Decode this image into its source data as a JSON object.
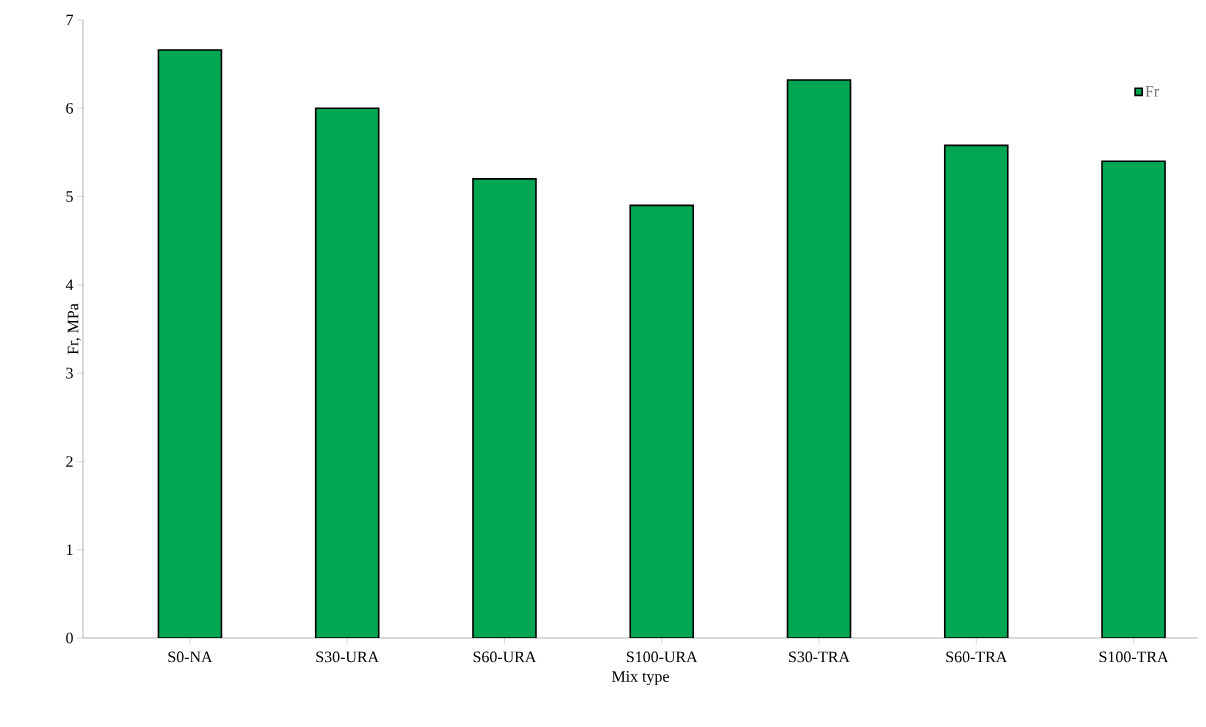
{
  "chart_data": {
    "type": "bar",
    "xlabel": "Mix type",
    "ylabel": "Fr, MPa",
    "categories": [
      "S0-NA",
      "S30-URA",
      "S60-URA",
      "S100-URA",
      "S30-TRA",
      "S60-TRA",
      "S100-TRA"
    ],
    "series": [
      {
        "name": "Fr",
        "color": "#00a651",
        "values": [
          6.66,
          6.0,
          5.2,
          4.9,
          6.32,
          5.58,
          5.4
        ]
      }
    ],
    "ylim": [
      0,
      7
    ],
    "yticks": [
      0,
      1,
      2,
      3,
      4,
      5,
      6,
      7
    ],
    "grid": false,
    "legend": "top right"
  }
}
